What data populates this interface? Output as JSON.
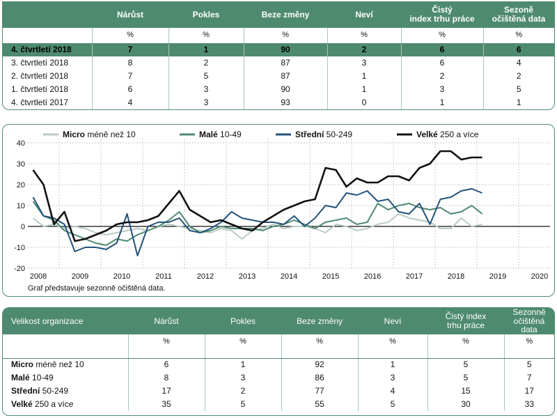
{
  "top_table": {
    "headers": [
      "Nárůst",
      "Pokles",
      "Beze změny",
      "Neví",
      "Čistý index trhu práce",
      "Sezoně očištěná data"
    ],
    "headers_l1": [
      "Nárůst",
      "Pokles",
      "Beze změny",
      "Neví",
      "Čistý",
      "Sezoně"
    ],
    "headers_l2": [
      "",
      "",
      "",
      "",
      "index trhu práce",
      "očištěná data"
    ],
    "units": [
      "%",
      "%",
      "%",
      "%",
      "%",
      "%"
    ],
    "rows": [
      {
        "label": "4. čtvrtletí 2018",
        "values": [
          "7",
          "1",
          "90",
          "2",
          "6",
          "6"
        ]
      },
      {
        "label": "3. čtvrtletí 2018",
        "values": [
          "8",
          "2",
          "87",
          "3",
          "6",
          "4"
        ]
      },
      {
        "label": "2. čtvrtletí 2018",
        "values": [
          "7",
          "5",
          "87",
          "1",
          "2",
          "2"
        ]
      },
      {
        "label": "1. čtvrtletí 2018",
        "values": [
          "6",
          "3",
          "90",
          "1",
          "3",
          "5"
        ]
      },
      {
        "label": "4. čtvrtletí 2017",
        "values": [
          "4",
          "3",
          "93",
          "0",
          "1",
          "1"
        ]
      }
    ]
  },
  "chart_data": {
    "type": "line",
    "note": "Graf představuje sezonně očištěná data.",
    "x_ticks": [
      "2008",
      "2009",
      "2010",
      "2011",
      "2012",
      "2013",
      "2014",
      "2015",
      "2016",
      "2017",
      "2018",
      "2019",
      "2020"
    ],
    "y_ticks": [
      "40",
      "30",
      "20",
      "10",
      "0",
      "-10",
      "-20"
    ],
    "ylim": [
      -20,
      40
    ],
    "xlim": [
      2007.75,
      2020.25
    ],
    "grid": true,
    "legend_position": "top",
    "x": [
      2007.875,
      2008.125,
      2008.375,
      2008.625,
      2008.875,
      2009.125,
      2009.375,
      2009.625,
      2009.875,
      2010.125,
      2010.375,
      2010.625,
      2010.875,
      2011.125,
      2011.375,
      2011.625,
      2011.875,
      2012.125,
      2012.375,
      2012.625,
      2012.875,
      2013.125,
      2013.375,
      2013.625,
      2013.875,
      2014.125,
      2014.375,
      2014.625,
      2014.875,
      2015.125,
      2015.375,
      2015.625,
      2015.875,
      2016.125,
      2016.375,
      2016.625,
      2016.875,
      2017.125,
      2017.375,
      2017.625,
      2017.875,
      2018.125,
      2018.375,
      2018.625
    ],
    "series": [
      {
        "name": "Micro",
        "suffix": "méně než 10",
        "color": "#b9cbc2",
        "width": 2,
        "values": [
          4,
          0,
          1,
          -1,
          0,
          -1,
          -3,
          -4,
          -3,
          -2,
          -1,
          -2,
          0,
          1,
          0,
          -1,
          -2,
          -3,
          -1,
          -2,
          -6,
          -2,
          -1,
          1,
          -1,
          0,
          0,
          -1,
          -3,
          1,
          0,
          -2,
          -1,
          1,
          2,
          6,
          4,
          3,
          2,
          -1,
          -1,
          4,
          0,
          1
        ]
      },
      {
        "name": "Malé",
        "suffix": "10-49",
        "color": "#4e8a6f",
        "width": 2,
        "values": [
          12,
          5,
          3,
          -2,
          -4,
          -6,
          -8,
          -9,
          -6,
          -7,
          -4,
          -2,
          0,
          3,
          7,
          0,
          -3,
          -2,
          0,
          -1,
          -1,
          -1,
          -2,
          0,
          1,
          3,
          1,
          -1,
          2,
          3,
          4,
          1,
          2,
          11,
          8,
          10,
          11,
          9,
          8,
          9,
          6,
          7,
          10,
          6
        ]
      },
      {
        "name": "Střední",
        "suffix": "50-249",
        "color": "#23527a",
        "width": 2,
        "values": [
          14,
          5,
          4,
          1,
          -12,
          -10,
          -10,
          -11,
          -8,
          6,
          -14,
          0,
          2,
          2,
          4,
          -2,
          -3,
          -1,
          2,
          7,
          4,
          3,
          2,
          2,
          1,
          5,
          0,
          4,
          10,
          9,
          16,
          15,
          17,
          12,
          13,
          7,
          6,
          11,
          1,
          13,
          14,
          17,
          18,
          16
        ]
      },
      {
        "name": "Velké",
        "suffix": "250 a více",
        "color": "#111111",
        "width": 2.6,
        "values": [
          27,
          20,
          1,
          7,
          -7,
          -6,
          -4,
          -2,
          1,
          2,
          2,
          3,
          5,
          11,
          17,
          8,
          5,
          2,
          3,
          1,
          -1,
          -2,
          2,
          5,
          8,
          10,
          12,
          13,
          28,
          27,
          19,
          23,
          21,
          21,
          24,
          24,
          22,
          28,
          30,
          36,
          36,
          32,
          33,
          33
        ]
      }
    ]
  },
  "bottom_table": {
    "header_label": "Velikost organizace",
    "headers_l1": [
      "Nárůst",
      "Pokles",
      "Beze změny",
      "Neví",
      "Čistý index",
      "Sezonně"
    ],
    "headers_l2": [
      "",
      "",
      "",
      "",
      "trhu práce",
      "očištěná data"
    ],
    "units": [
      "%",
      "%",
      "%",
      "%",
      "%",
      "%"
    ],
    "rows": [
      {
        "name": "Micro",
        "suffix": " méně než 10",
        "values": [
          "6",
          "1",
          "92",
          "1",
          "5",
          "5"
        ]
      },
      {
        "name": "Malé",
        "suffix": " 10-49",
        "values": [
          "8",
          "3",
          "86",
          "3",
          "5",
          "7"
        ]
      },
      {
        "name": "Střední",
        "suffix": " 50-249",
        "values": [
          "17",
          "2",
          "77",
          "4",
          "15",
          "17"
        ]
      },
      {
        "name": "Velké",
        "suffix": " 250 a více",
        "values": [
          "35",
          "5",
          "55",
          "5",
          "30",
          "33"
        ]
      }
    ]
  }
}
